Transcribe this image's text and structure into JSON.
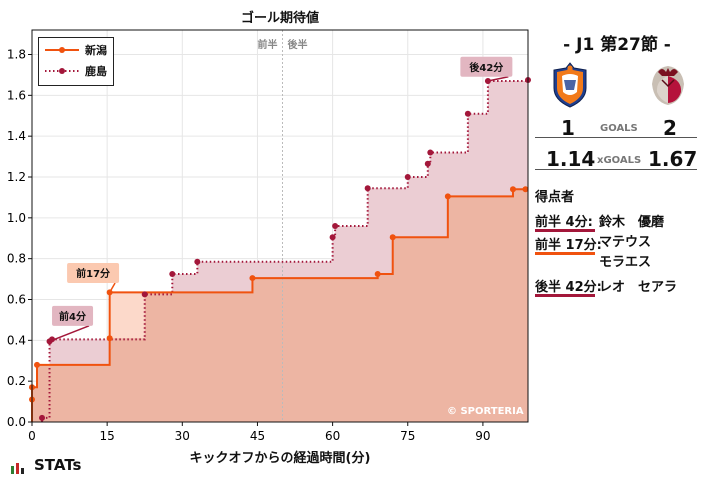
{
  "colors": {
    "niigata": "#f0520f",
    "kashima": "#a3173a",
    "niigata_fill": "#edb5a3",
    "kashima_fill": "#ebcdd3",
    "callout_niigata_bg": "#fbc9b0",
    "callout_kashima_bg": "#e2b6c1",
    "axis": "#111111",
    "grid": "#e6e6e6",
    "halftime_line": "#bbbbbb"
  },
  "chart_data": {
    "type": "line",
    "title": "ゴール期待値",
    "xlabel": "キックオフからの経過時間(分)",
    "ylabel": "",
    "xlim": [
      0,
      99
    ],
    "ylim": [
      0,
      1.92
    ],
    "xticks": [
      0,
      15,
      30,
      45,
      60,
      75,
      90
    ],
    "yticks": [
      0.0,
      0.2,
      0.4,
      0.6,
      0.8,
      1.0,
      1.2,
      1.4,
      1.6,
      1.8
    ],
    "ytick_labels": [
      "0.0",
      "0.2",
      "0.4",
      "0.6",
      "0.8",
      "1.0",
      "1.2",
      "1.4",
      "1.6",
      "1.8"
    ],
    "grid": true,
    "legend_position": "top-left",
    "halftime_minute": 50,
    "halftime_labels": {
      "first": "前半",
      "second": "後半"
    },
    "series": [
      {
        "name": "新潟",
        "style": "solid",
        "points": [
          [
            0,
            0.11
          ],
          [
            0,
            0.17
          ],
          [
            1,
            0.28
          ],
          [
            15.5,
            0.41
          ],
          [
            15.5,
            0.635
          ],
          [
            44,
            0.705
          ],
          [
            69,
            0.725
          ],
          [
            72,
            0.905
          ],
          [
            83,
            1.105
          ],
          [
            96,
            1.14
          ],
          [
            98.5,
            1.14
          ]
        ],
        "end": 99
      },
      {
        "name": "鹿島",
        "style": "dotted",
        "points": [
          [
            2,
            0.02
          ],
          [
            3.5,
            0.395
          ],
          [
            4,
            0.405
          ],
          [
            22.5,
            0.625
          ],
          [
            28,
            0.725
          ],
          [
            33,
            0.785
          ],
          [
            60,
            0.905
          ],
          [
            60.5,
            0.96
          ],
          [
            67,
            1.145
          ],
          [
            75,
            1.2
          ],
          [
            79,
            1.265
          ],
          [
            79.5,
            1.32
          ],
          [
            87,
            1.51
          ],
          [
            91,
            1.67
          ],
          [
            99,
            1.675
          ]
        ],
        "end": 99
      }
    ],
    "annotations": [
      {
        "label": "前4分",
        "x": 3.5,
        "y": 0.395,
        "team": "kashima"
      },
      {
        "label": "前17分",
        "x": 15.5,
        "y": 0.635,
        "team": "niigata"
      },
      {
        "label": "後42分",
        "x": 91,
        "y": 1.67,
        "team": "kashima"
      }
    ]
  },
  "watermark": "© SPORTERIA",
  "brand": "STATs",
  "match": {
    "title": "-  J1 第27節  -",
    "home": {
      "name": "新潟",
      "crest": "niigata-crest-icon",
      "goals": "1",
      "xg": "1.14"
    },
    "away": {
      "name": "鹿島",
      "crest": "kashima-crest-icon",
      "goals": "2",
      "xg": "1.67"
    },
    "goals_label": "GOALS",
    "xg_label": "xGOALS"
  },
  "scorers": {
    "title": "得点者",
    "items": [
      {
        "when": "前半   4分:",
        "who": "鈴木　優磨",
        "team": "kashima"
      },
      {
        "when": "前半 17分:",
        "who": "マテウス\nモラエス",
        "team": "niigata"
      },
      {
        "when": "後半 42分:",
        "who": "レオ　セアラ",
        "team": "kashima"
      }
    ]
  }
}
